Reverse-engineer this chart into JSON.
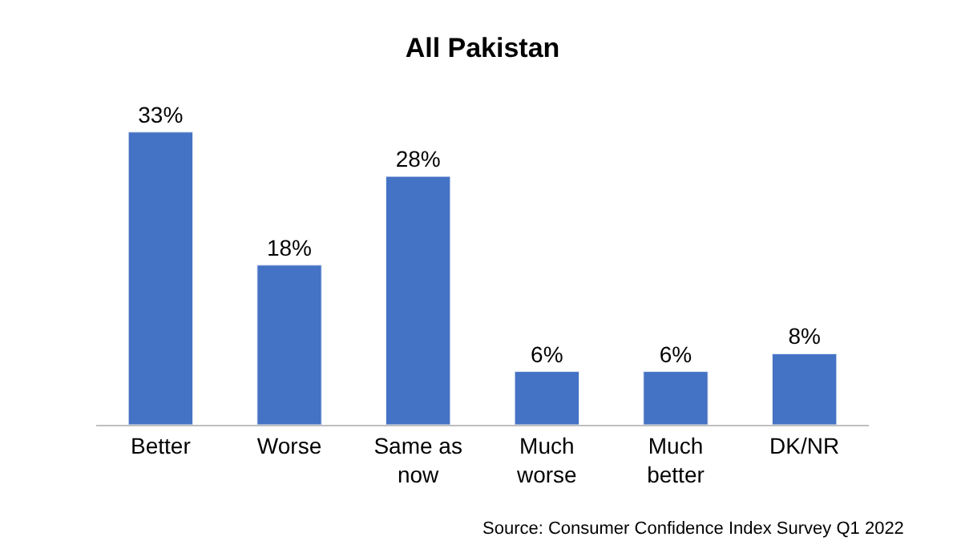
{
  "chart_data": {
    "type": "bar",
    "title": "All Pakistan",
    "categories": [
      "Better",
      "Worse",
      "Same as now",
      "Much worse",
      "Much better",
      "DK/NR"
    ],
    "values": [
      33,
      18,
      28,
      6,
      6,
      8
    ],
    "color": "#4472c4",
    "value_labels": [
      "33%",
      "18%",
      "28%",
      "6%",
      "6%",
      "8%"
    ],
    "annotations": [
      "Source: Consumer Confidence Index Survey Q1 2022"
    ]
  }
}
